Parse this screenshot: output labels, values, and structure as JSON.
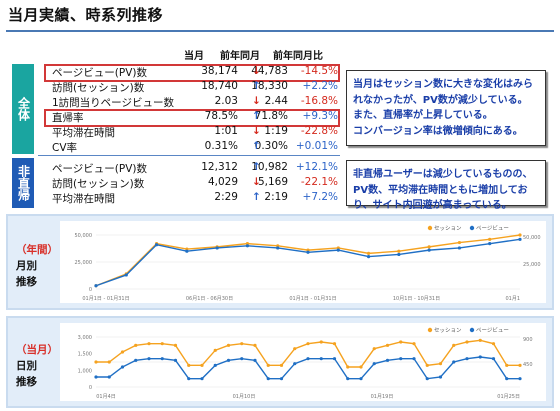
{
  "title": "当月実績、時系列推移",
  "table": {
    "headers": [
      "当月",
      "前年同月",
      "前年同月比"
    ],
    "section_all_label": "全体",
    "section_indirect_label": "非直帰",
    "rows_all": [
      {
        "label": "ページビュー(PV)数",
        "current": "38,174",
        "previous": "44,783",
        "arrow": "↓",
        "change": "-14.5%",
        "trend": "down"
      },
      {
        "label": "訪問(セッション)数",
        "current": "18,740",
        "previous": "18,330",
        "arrow": "↑",
        "change": "+2.2%",
        "trend": "up"
      },
      {
        "label": "1訪問当りページビュー数",
        "current": "2.03",
        "previous": "2.44",
        "arrow": "↓",
        "change": "-16.8%",
        "trend": "down"
      },
      {
        "label": "直帰率",
        "current": "78.5%",
        "previous": "71.8%",
        "arrow": "↑",
        "change": "+9.3%",
        "trend": "up"
      },
      {
        "label": "平均滞在時間",
        "current": "1:01",
        "previous": "1:19",
        "arrow": "↓",
        "change": "-22.8%",
        "trend": "down"
      },
      {
        "label": "CV率",
        "current": "0.31%",
        "previous": "0.30%",
        "arrow": "↑",
        "change": "+0.01%",
        "trend": "up"
      }
    ],
    "rows_indirect": [
      {
        "label": "ページビュー(PV)数",
        "current": "12,312",
        "previous": "10,982",
        "arrow": "↑",
        "change": "+12.1%",
        "trend": "up"
      },
      {
        "label": "訪問(セッション)数",
        "current": "4,029",
        "previous": "5,169",
        "arrow": "↓",
        "change": "-22.1%",
        "trend": "down"
      },
      {
        "label": "平均滞在時間",
        "current": "2:29",
        "previous": "2:19",
        "arrow": "↑",
        "change": "+7.2%",
        "trend": "up"
      }
    ]
  },
  "notes": {
    "all": "当月はセッション数に大きな変化はみられなかったが、PV数が減少している。\nまた、直帰率が上昇している。\nコンバージョン率は微増傾向にある。",
    "indirect": "非直帰ユーザーは減少しているものの、PV数、平均滞在時間ともに増加しており、サイト内回遊が高まっている。"
  },
  "charts": {
    "monthly": {
      "label_paren": "（年間）",
      "label_line1": "月別",
      "label_line2": "推移"
    },
    "daily": {
      "label_paren": "（当月）",
      "label_line1": "日別",
      "label_line2": "推移"
    }
  },
  "colors": {
    "session": "#f5a21f",
    "pageview": "#1f6fc5",
    "down": "#d42a1e",
    "up": "#2c63c8"
  },
  "chart_data": [
    {
      "type": "line",
      "legend": [
        "セッション",
        "ページビュー"
      ],
      "left_ticks": [
        "50,000",
        "25,000",
        "0"
      ],
      "right_ticks": [
        "50,000",
        "25,000"
      ],
      "x_ticks": [
        "01月1日 - 01月31日",
        "06月1日 - 06月30日",
        "01月1日 - 01月31日",
        "10月1日 - 10月31日",
        "01月1"
      ],
      "ylim": [
        0,
        50000
      ],
      "series": [
        {
          "name": "セッション",
          "values": [
            3000,
            14000,
            42000,
            37000,
            39000,
            42000,
            40000,
            36000,
            38000,
            33000,
            35000,
            39000,
            43000,
            46000,
            50000
          ]
        },
        {
          "name": "ページビュー",
          "values": [
            3000,
            13000,
            41000,
            35000,
            38000,
            40000,
            38000,
            34000,
            36000,
            30000,
            32000,
            36000,
            38000,
            42000,
            46000
          ]
        }
      ]
    },
    {
      "type": "line",
      "legend": [
        "セッション",
        "ページビュー"
      ],
      "left_ticks": [
        "3,000",
        "1,500",
        "1,000",
        "0"
      ],
      "right_ticks": [
        "900",
        "450"
      ],
      "x_ticks": [
        "01月4日",
        "01月10日",
        "01月19日",
        "01月25日"
      ],
      "ylim": [
        0,
        3000
      ],
      "series": [
        {
          "name": "セッション",
          "values": [
            1500,
            1500,
            2100,
            2500,
            2600,
            2600,
            2500,
            1300,
            1300,
            2200,
            2500,
            2600,
            2500,
            1300,
            1300,
            2300,
            2600,
            2700,
            2600,
            1200,
            1200,
            2300,
            2500,
            2700,
            2600,
            1300,
            1400,
            2500,
            2700,
            2800,
            2600,
            1300,
            1300
          ]
        },
        {
          "name": "ページビュー",
          "values": [
            600,
            600,
            1200,
            1600,
            1700,
            1700,
            1600,
            500,
            500,
            1300,
            1600,
            1700,
            1600,
            500,
            500,
            1400,
            1700,
            1700,
            1700,
            500,
            500,
            1400,
            1600,
            1700,
            1700,
            500,
            600,
            1500,
            1700,
            1800,
            1700,
            500,
            500
          ]
        }
      ]
    }
  ]
}
